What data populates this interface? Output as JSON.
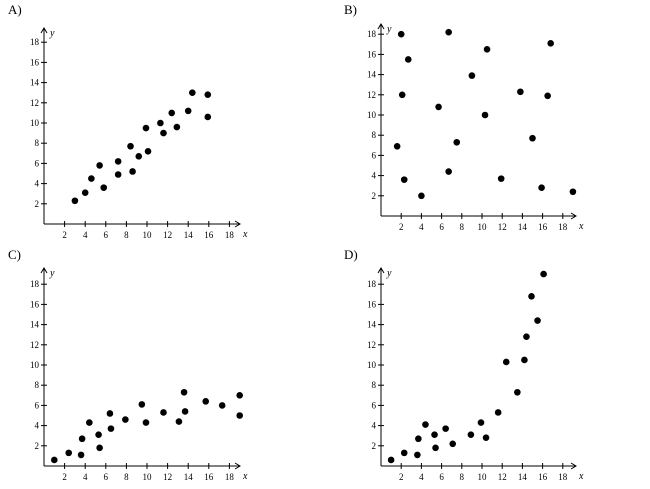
{
  "chart_data": [
    {
      "type": "scatter",
      "panel_label": "A)",
      "xlabel": "x",
      "ylabel": "y",
      "xlim": [
        0,
        20
      ],
      "ylim": [
        0,
        20
      ],
      "x_ticks": [
        "2",
        "4",
        "6",
        "8",
        "10",
        "12",
        "14",
        "16",
        "18"
      ],
      "y_ticks": [
        "2",
        "4",
        "6",
        "8",
        "10",
        "12",
        "14",
        "16",
        "18"
      ],
      "points": [
        [
          3,
          2.3
        ],
        [
          4,
          3.1
        ],
        [
          4.6,
          4.5
        ],
        [
          5.4,
          5.8
        ],
        [
          5.8,
          3.6
        ],
        [
          7.2,
          6.2
        ],
        [
          7.2,
          4.9
        ],
        [
          8.4,
          7.7
        ],
        [
          8.6,
          5.2
        ],
        [
          9.2,
          6.7
        ],
        [
          9.9,
          9.5
        ],
        [
          10.1,
          7.2
        ],
        [
          11.3,
          10
        ],
        [
          11.6,
          9
        ],
        [
          12.4,
          11
        ],
        [
          12.9,
          9.6
        ],
        [
          14,
          11.2
        ],
        [
          14.4,
          13
        ],
        [
          15.9,
          12.8
        ],
        [
          15.9,
          10.6
        ]
      ]
    },
    {
      "type": "scatter",
      "panel_label": "B)",
      "xlabel": "x",
      "ylabel": "y",
      "xlim": [
        0,
        20
      ],
      "ylim": [
        0,
        20
      ],
      "x_ticks": [
        "2",
        "4",
        "6",
        "8",
        "10",
        "12",
        "14",
        "16",
        "18"
      ],
      "y_ticks": [
        "2",
        "4",
        "6",
        "8",
        "10",
        "12",
        "14",
        "16",
        "18"
      ],
      "points": [
        [
          1.6,
          6.9
        ],
        [
          2,
          18
        ],
        [
          2.1,
          12
        ],
        [
          2.3,
          3.6
        ],
        [
          2.7,
          15.5
        ],
        [
          4,
          2
        ],
        [
          5.7,
          10.8
        ],
        [
          6.7,
          18.2
        ],
        [
          6.7,
          4.4
        ],
        [
          7.5,
          7.3
        ],
        [
          9,
          13.9
        ],
        [
          10.3,
          10
        ],
        [
          10.5,
          16.5
        ],
        [
          11.9,
          3.7
        ],
        [
          13.8,
          12.3
        ],
        [
          15,
          7.7
        ],
        [
          15.9,
          2.8
        ],
        [
          16.5,
          11.9
        ],
        [
          16.8,
          17.1
        ],
        [
          19,
          2.4
        ]
      ]
    },
    {
      "type": "scatter",
      "panel_label": "C)",
      "xlabel": "x",
      "ylabel": "y",
      "xlim": [
        0,
        20
      ],
      "ylim": [
        0,
        20
      ],
      "x_ticks": [
        "2",
        "4",
        "6",
        "8",
        "10",
        "12",
        "14",
        "16",
        "18"
      ],
      "y_ticks": [
        "2",
        "4",
        "6",
        "8",
        "10",
        "12",
        "14",
        "16",
        "18"
      ],
      "points": [
        [
          1,
          0.6
        ],
        [
          2.4,
          1.3
        ],
        [
          3.6,
          1.1
        ],
        [
          3.7,
          2.7
        ],
        [
          4.4,
          4.3
        ],
        [
          5.3,
          3.1
        ],
        [
          5.4,
          1.8
        ],
        [
          6.4,
          5.2
        ],
        [
          6.5,
          3.7
        ],
        [
          7.9,
          4.6
        ],
        [
          9.5,
          6.1
        ],
        [
          9.9,
          4.3
        ],
        [
          11.6,
          5.3
        ],
        [
          13.1,
          4.4
        ],
        [
          13.6,
          7.3
        ],
        [
          13.7,
          5.4
        ],
        [
          15.7,
          6.4
        ],
        [
          17.3,
          6
        ],
        [
          19,
          7
        ],
        [
          19,
          5
        ]
      ]
    },
    {
      "type": "scatter",
      "panel_label": "D)",
      "xlabel": "x",
      "ylabel": "y",
      "xlim": [
        0,
        20
      ],
      "ylim": [
        0,
        20
      ],
      "x_ticks": [
        "2",
        "4",
        "6",
        "8",
        "10",
        "12",
        "14",
        "16",
        "18"
      ],
      "y_ticks": [
        "2",
        "4",
        "6",
        "8",
        "10",
        "12",
        "14",
        "16",
        "18"
      ],
      "points": [
        [
          1,
          0.6
        ],
        [
          2.3,
          1.3
        ],
        [
          3.6,
          1.1
        ],
        [
          3.7,
          2.7
        ],
        [
          4.4,
          4.1
        ],
        [
          5.3,
          3.1
        ],
        [
          5.4,
          1.8
        ],
        [
          6.4,
          3.7
        ],
        [
          7.1,
          2.2
        ],
        [
          8.9,
          3.1
        ],
        [
          9.9,
          4.3
        ],
        [
          10.4,
          2.8
        ],
        [
          11.6,
          5.3
        ],
        [
          12.4,
          10.3
        ],
        [
          13.5,
          7.3
        ],
        [
          14.2,
          10.5
        ],
        [
          14.4,
          12.8
        ],
        [
          14.9,
          16.8
        ],
        [
          15.5,
          14.4
        ],
        [
          16.1,
          19
        ]
      ]
    }
  ]
}
